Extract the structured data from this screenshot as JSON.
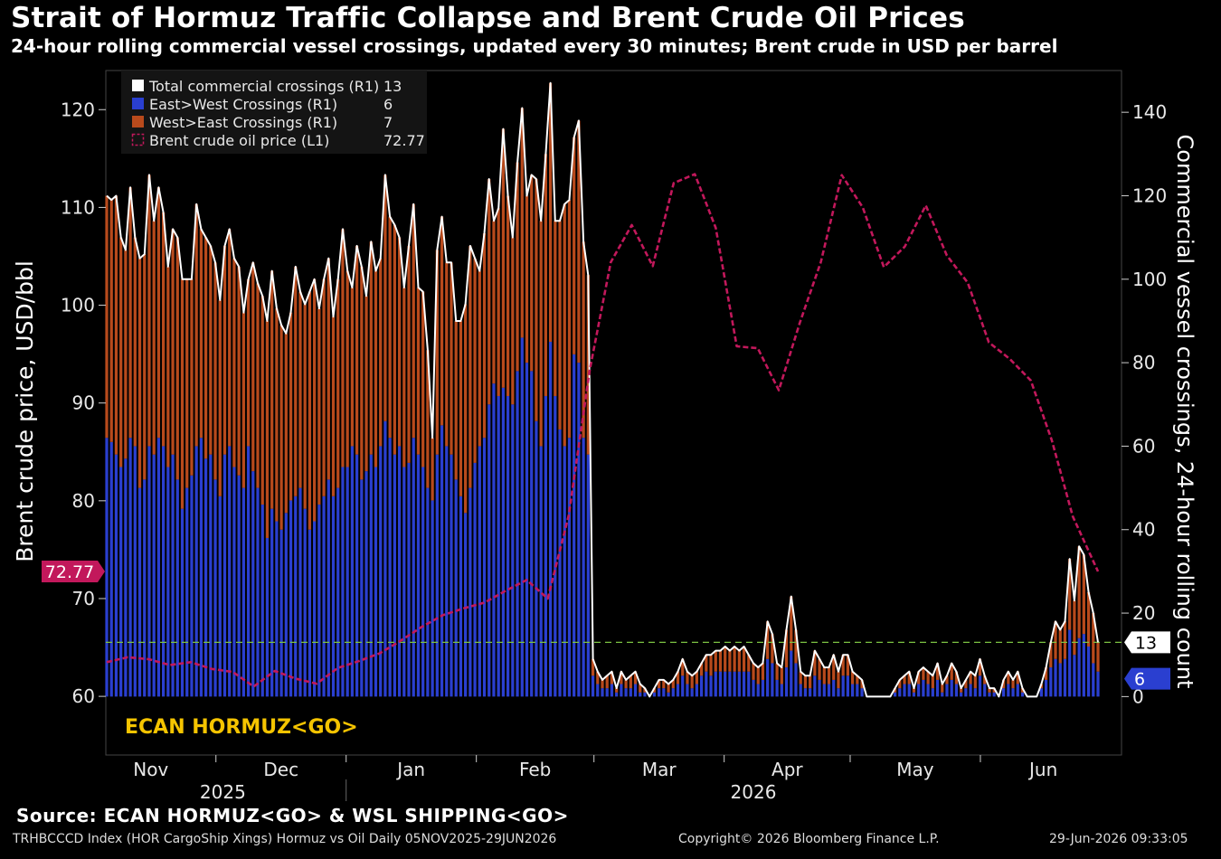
{
  "title": "Strait of Hormuz Traffic Collapse and Brent Crude Oil Prices",
  "subtitle": "24-hour rolling commercial vessel crossings, updated every 30 minutes; Brent crude in USD per barrel",
  "source": "Source: ECAN HORMUZ<GO> & WSL SHIPPING<GO>",
  "footer_left": "TRHBCCCD Index (HOR CargoShip Xings) Hormuz vs Oil Daily 05NOV2025-29JUN2026",
  "footer_center": "Copyright© 2026 Bloomberg Finance L.P.",
  "footer_right": "29-Jun-2026 09:33:05",
  "watermark": "ECAN HORMUZ<GO>",
  "colors": {
    "total": "#ffffff",
    "east_west": "#2a3fd0",
    "west_east": "#b84a1c",
    "brent": "#c2185b",
    "reference": "#7cc242",
    "watermark": "#f5c400",
    "axis": "#cfcfcf"
  },
  "chart_data": {
    "type": "bar",
    "stacked": true,
    "x_range": [
      "2025-11-05",
      "2026-06-29"
    ],
    "x_ticks": [
      "Nov",
      "Dec",
      "Jan",
      "Feb",
      "Mar",
      "Apr",
      "May",
      "Jun"
    ],
    "year_labels": [
      "2025",
      "2026"
    ],
    "left_axis": {
      "label": "Brent crude price, USD/bbl",
      "range": [
        54,
        124
      ],
      "ticks": [
        60,
        70,
        80,
        90,
        100,
        110,
        120
      ]
    },
    "right_axis": {
      "label": "Commercial vessel crossings, 24-hour rolling count",
      "range": [
        -14,
        150
      ],
      "ticks": [
        0,
        20,
        40,
        60,
        80,
        100,
        120,
        140
      ]
    },
    "legend": {
      "placement": "top-left",
      "entries": [
        {
          "name": "Total commercial crossings (R1)",
          "value": "13"
        },
        {
          "name": "East>West Crossings (R1)",
          "value": "6"
        },
        {
          "name": "West>East Crossings (R1)",
          "value": "7"
        },
        {
          "name": "Brent crude oil price (L1)",
          "value": "72.77"
        }
      ]
    },
    "last_values": {
      "brent": "72.77",
      "total": "13",
      "east_west": "6"
    },
    "reference_line": {
      "axis": "right",
      "value": 13
    },
    "series": [
      {
        "name": "East>West Crossings (R1)",
        "axis": "right",
        "values": [
          62,
          61,
          58,
          55,
          57,
          62,
          60,
          50,
          52,
          60,
          58,
          62,
          60,
          55,
          58,
          52,
          45,
          50,
          53,
          60,
          62,
          57,
          58,
          52,
          48,
          58,
          60,
          55,
          53,
          50,
          60,
          54,
          50,
          46,
          38,
          45,
          42,
          40,
          44,
          47,
          48,
          50,
          45,
          40,
          42,
          46,
          48,
          52,
          48,
          50,
          55,
          55,
          60,
          58,
          52,
          54,
          58,
          55,
          60,
          66,
          62,
          58,
          60,
          55,
          56,
          62,
          58,
          55,
          50,
          47,
          58,
          65,
          60,
          58,
          52,
          48,
          44,
          50,
          56,
          60,
          62,
          70,
          75,
          72,
          74,
          72,
          70,
          78,
          86,
          80,
          78,
          66,
          60,
          72,
          85,
          72,
          64,
          60,
          62,
          82,
          80,
          62,
          58,
          5,
          3,
          2,
          2,
          3,
          1,
          3,
          2,
          2,
          3,
          1,
          1,
          0,
          1,
          2,
          2,
          1,
          2,
          3,
          5,
          3,
          2,
          3,
          5,
          6,
          5,
          6,
          6,
          6,
          6,
          6,
          6,
          6,
          6,
          4,
          3,
          4,
          9,
          8,
          4,
          3,
          7,
          11,
          8,
          3,
          2,
          2,
          5,
          4,
          3,
          3,
          4,
          2,
          5,
          5,
          3,
          3,
          2,
          0,
          0,
          0,
          0,
          0,
          0,
          1,
          2,
          3,
          3,
          1,
          3,
          4,
          3,
          2,
          4,
          1,
          3,
          4,
          3,
          1,
          2,
          3,
          2,
          5,
          3,
          1,
          1,
          0,
          2,
          3,
          2,
          3,
          1,
          0,
          0,
          0,
          2,
          4,
          7,
          9,
          8,
          9,
          16,
          10,
          14,
          15,
          12,
          8,
          6
        ]
      },
      {
        "name": "West>East Crossings (R1)",
        "axis": "right",
        "values": [
          58,
          58,
          62,
          55,
          50,
          60,
          50,
          55,
          54,
          65,
          56,
          60,
          56,
          48,
          54,
          58,
          55,
          50,
          47,
          58,
          50,
          53,
          50,
          52,
          47,
          50,
          52,
          50,
          50,
          42,
          40,
          50,
          49,
          50,
          52,
          57,
          51,
          49,
          43,
          45,
          55,
          47,
          49,
          57,
          58,
          47,
          52,
          53,
          43,
          50,
          57,
          47,
          38,
          50,
          51,
          42,
          51,
          47,
          45,
          59,
          53,
          55,
          50,
          43,
          52,
          56,
          40,
          42,
          33,
          15,
          49,
          50,
          44,
          46,
          38,
          42,
          50,
          58,
          49,
          42,
          49,
          54,
          39,
          45,
          62,
          48,
          40,
          50,
          55,
          40,
          47,
          58,
          54,
          58,
          62,
          42,
          50,
          58,
          57,
          52,
          58,
          47,
          43,
          4,
          3,
          2,
          3,
          3,
          1,
          3,
          2,
          3,
          3,
          2,
          1,
          0,
          1,
          2,
          2,
          2,
          2,
          3,
          4,
          3,
          3,
          3,
          3,
          4,
          5,
          5,
          5,
          6,
          5,
          6,
          5,
          6,
          4,
          4,
          4,
          4,
          9,
          7,
          4,
          4,
          9,
          13,
          8,
          3,
          3,
          3,
          6,
          5,
          4,
          4,
          6,
          4,
          5,
          5,
          3,
          2,
          2,
          0,
          0,
          0,
          0,
          0,
          0,
          1,
          2,
          2,
          3,
          1,
          3,
          3,
          3,
          3,
          4,
          2,
          2,
          4,
          3,
          1,
          2,
          3,
          3,
          4,
          2,
          1,
          1,
          0,
          2,
          3,
          2,
          3,
          1,
          0,
          0,
          0,
          1,
          3,
          6,
          9,
          8,
          9,
          17,
          13,
          22,
          19,
          13,
          12,
          7
        ]
      },
      {
        "name": "Total commercial crossings (R1)",
        "axis": "right",
        "values": [
          120,
          119,
          120,
          110,
          107,
          122,
          110,
          105,
          106,
          125,
          114,
          122,
          116,
          103,
          112,
          110,
          100,
          100,
          100,
          118,
          112,
          110,
          108,
          104,
          95,
          108,
          112,
          105,
          103,
          92,
          100,
          104,
          99,
          96,
          90,
          102,
          93,
          89,
          87,
          92,
          103,
          97,
          94,
          97,
          100,
          93,
          100,
          105,
          91,
          100,
          112,
          102,
          98,
          108,
          103,
          96,
          109,
          102,
          105,
          125,
          115,
          113,
          110,
          98,
          108,
          118,
          98,
          97,
          83,
          62,
          107,
          115,
          104,
          104,
          90,
          90,
          94,
          108,
          105,
          102,
          111,
          124,
          114,
          117,
          136,
          120,
          110,
          128,
          141,
          120,
          125,
          124,
          114,
          130,
          147,
          114,
          114,
          118,
          119,
          134,
          138,
          109,
          101,
          9,
          6,
          4,
          5,
          6,
          2,
          6,
          4,
          5,
          6,
          3,
          2,
          0,
          2,
          4,
          4,
          3,
          4,
          6,
          9,
          6,
          5,
          6,
          8,
          10,
          10,
          11,
          11,
          12,
          11,
          12,
          11,
          12,
          10,
          8,
          7,
          8,
          18,
          15,
          8,
          7,
          16,
          24,
          16,
          6,
          5,
          5,
          11,
          9,
          7,
          7,
          10,
          6,
          10,
          10,
          6,
          5,
          4,
          0,
          0,
          0,
          0,
          0,
          0,
          2,
          4,
          5,
          6,
          2,
          6,
          7,
          6,
          5,
          8,
          3,
          5,
          8,
          6,
          2,
          4,
          6,
          5,
          9,
          5,
          2,
          2,
          0,
          4,
          6,
          4,
          6,
          2,
          0,
          0,
          0,
          3,
          7,
          13,
          18,
          16,
          18,
          33,
          23,
          36,
          34,
          25,
          20,
          13
        ]
      },
      {
        "name": "Brent crude oil price (L1)",
        "axis": "left",
        "x": [
          "2025-11-05",
          "2025-11-10",
          "2025-11-15",
          "2025-11-20",
          "2025-11-25",
          "2025-11-30",
          "2025-12-05",
          "2025-12-10",
          "2025-12-15",
          "2025-12-20",
          "2025-12-25",
          "2025-12-30",
          "2026-01-04",
          "2026-01-09",
          "2026-01-14",
          "2026-01-19",
          "2026-01-24",
          "2026-01-29",
          "2026-02-03",
          "2026-02-08",
          "2026-02-13",
          "2026-02-18",
          "2026-02-23",
          "2026-02-28",
          "2026-03-05",
          "2026-03-10",
          "2026-03-15",
          "2026-03-20",
          "2026-03-25",
          "2026-03-30",
          "2026-04-04",
          "2026-04-09",
          "2026-04-14",
          "2026-04-19",
          "2026-04-24",
          "2026-04-29",
          "2026-05-04",
          "2026-05-09",
          "2026-05-14",
          "2026-05-19",
          "2026-05-24",
          "2026-05-29",
          "2026-06-03",
          "2026-06-08",
          "2026-06-13",
          "2026-06-18",
          "2026-06-23",
          "2026-06-29"
        ],
        "values": [
          63.5,
          64.0,
          63.8,
          63.2,
          63.5,
          62.8,
          62.5,
          61.0,
          62.6,
          61.8,
          61.3,
          62.9,
          63.6,
          64.4,
          65.7,
          67.1,
          68.3,
          69.0,
          69.6,
          70.8,
          71.9,
          70.0,
          78.5,
          93.4,
          104.4,
          108.2,
          104.0,
          112.5,
          113.4,
          107.9,
          95.8,
          95.6,
          91.3,
          98.2,
          104.4,
          113.3,
          110.0,
          103.9,
          106.0,
          110.2,
          105.1,
          102.3,
          96.2,
          94.5,
          92.3,
          86.2,
          78.4,
          72.77
        ]
      }
    ]
  }
}
